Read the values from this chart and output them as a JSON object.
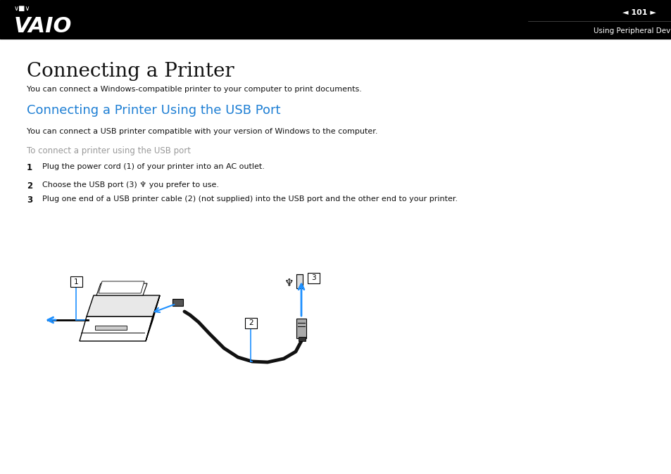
{
  "bg_color": "#ffffff",
  "header_bg": "#000000",
  "header_text_color": "#ffffff",
  "page_number": "101",
  "header_subtitle": "Using Peripheral Devices",
  "title": "Connecting a Printer",
  "title_fontsize": 20,
  "subtitle_color": "#1e7fd4",
  "subtitle_text": "Connecting a Printer Using the USB Port",
  "subtitle_fontsize": 13,
  "gray_text": "To connect a printer using the USB port",
  "gray_color": "#999999",
  "body_color": "#111111",
  "body_text1": "You can connect a Windows-compatible printer to your computer to print documents.",
  "body_text2": "You can connect a USB printer compatible with your version of Windows to the computer.",
  "step1_text": "Plug the power cord (1) of your printer into an AC outlet.",
  "step2_text": "Choose the USB port (3) ♆ you prefer to use.",
  "step3_text": "Plug one end of a USB printer cable (2) (not supplied) into the USB port and the other end to your printer.",
  "blue_arrow_color": "#1e90ff",
  "cable_color": "#111111"
}
